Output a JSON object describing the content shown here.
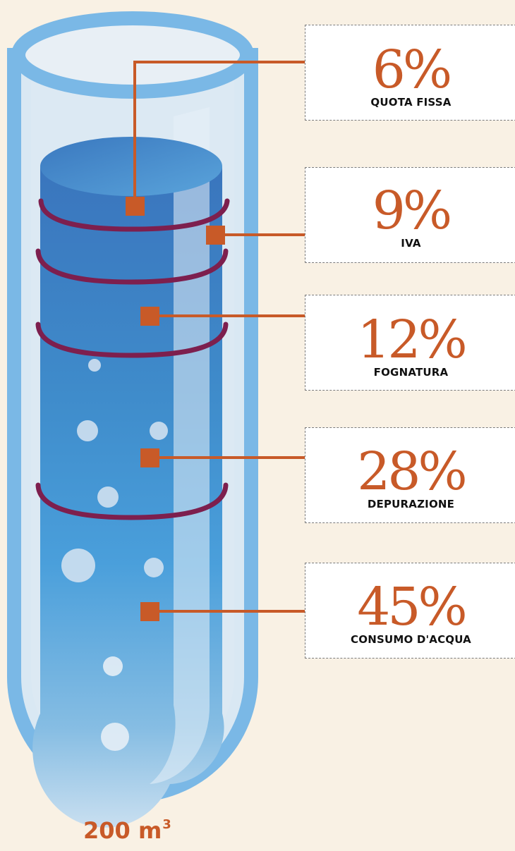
{
  "total_volume": {
    "value": "200 m",
    "superscript": "3"
  },
  "components": [
    {
      "percent": "6%",
      "label": "QUOTA FISSA",
      "value": 6
    },
    {
      "percent": "9%",
      "label": "IVA",
      "value": 9
    },
    {
      "percent": "12%",
      "label": "FOGNATURA",
      "value": 12
    },
    {
      "percent": "28%",
      "label": "DEPURAZIONE",
      "value": 28
    },
    {
      "percent": "45%",
      "label": "CONSUMO D'ACQUA",
      "value": 45
    }
  ],
  "colors": {
    "background": "#f9f1e4",
    "accent": "#c85a28",
    "tube_outline": "#7ab8e6",
    "water": "#3d7fc1",
    "ring": "#7d1f4e"
  }
}
